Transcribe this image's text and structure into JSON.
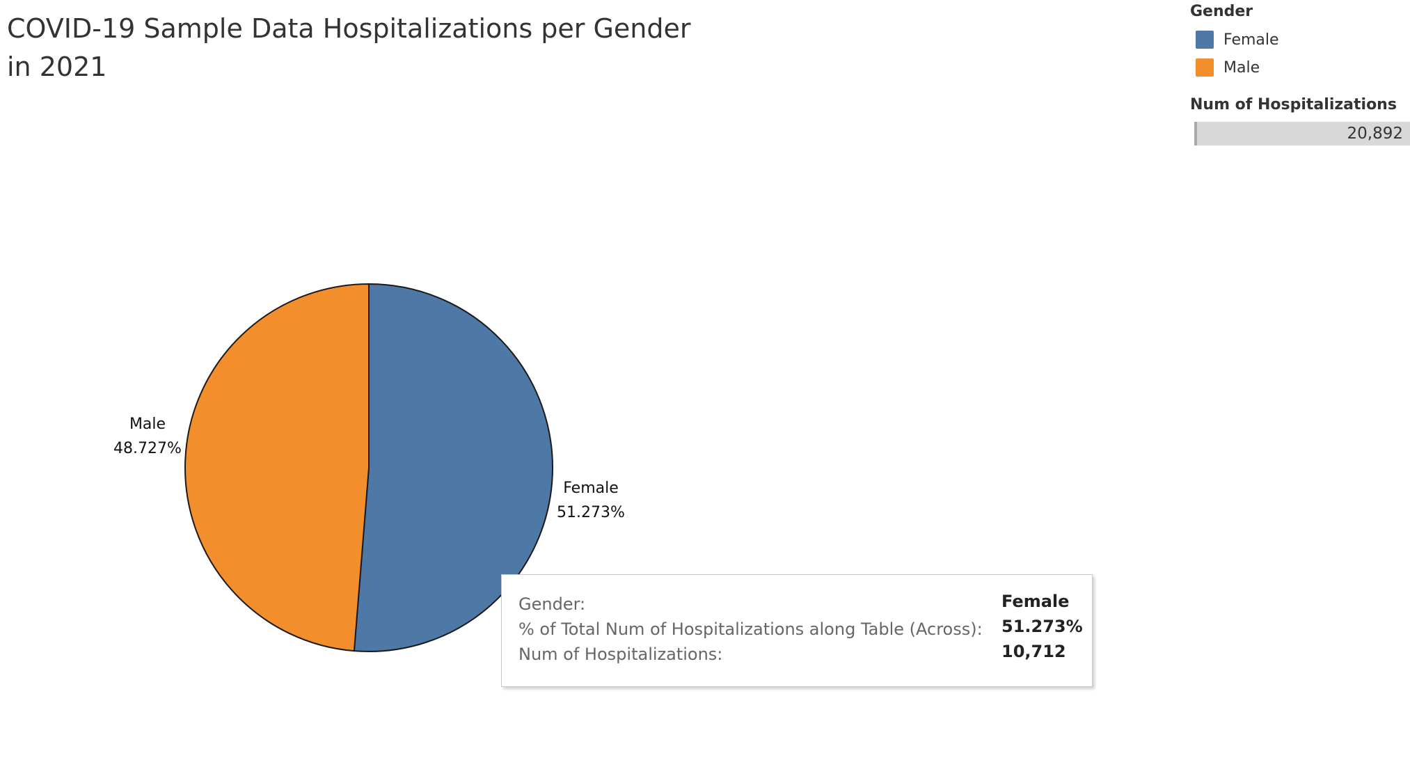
{
  "title": "COVID-19 Sample Data Hospitalizations per Gender in 2021",
  "legend": {
    "title": "Gender",
    "items": [
      {
        "label": "Female",
        "color": "#4e79a7"
      },
      {
        "label": "Male",
        "color": "#f28e2b"
      }
    ]
  },
  "size_legend": {
    "title": "Num of Hospitalizations",
    "value": "20,892"
  },
  "chart_data": {
    "type": "pie",
    "title": "COVID-19 Sample Data Hospitalizations per Gender in 2021",
    "slices": [
      {
        "label": "Female",
        "percent_label": "51.273%",
        "value": 51.273,
        "count": 10712,
        "color": "#4e79a7"
      },
      {
        "label": "Male",
        "percent_label": "48.727%",
        "value": 48.727,
        "color": "#f28e2b"
      }
    ],
    "total": 20892
  },
  "tooltip": {
    "rows": [
      {
        "label": "Gender:",
        "value": "Female"
      },
      {
        "label": "% of Total Num of Hospitalizations along Table (Across):",
        "value": "51.273%"
      },
      {
        "label": "Num of Hospitalizations:",
        "value": "10,712"
      }
    ]
  }
}
